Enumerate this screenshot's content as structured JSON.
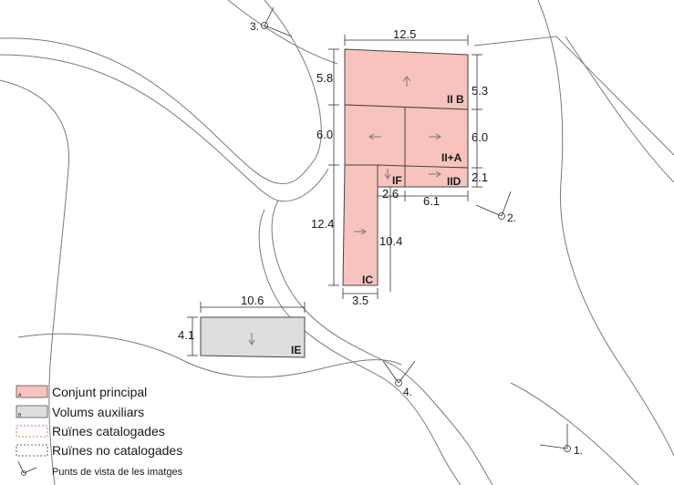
{
  "colors": {
    "principal_fill": "#f8c3bd",
    "auxiliar_fill": "#dedede",
    "ruines_cat_stroke": "#e04a3a",
    "ruines_no_cat_stroke": "#333333",
    "line": "#555555"
  },
  "dimensions": {
    "main_width": "12.5",
    "left_top": "5.8",
    "right_top": "5.3",
    "left_mid": "6.0",
    "right_mid": "6.0",
    "right_low": "2.1",
    "left_tall": "12.4",
    "inner_wing": "10.4",
    "inner_gap": "2.6",
    "right_bottom": "6.1",
    "wing_width": "3.5",
    "aux_width": "10.6",
    "aux_height": "4.1"
  },
  "labels": {
    "iib": "II B",
    "iia": "II+A",
    "iid": "IID",
    "if": "IF",
    "ic": "IC",
    "ie": "IE"
  },
  "viewpoints": {
    "vp1": "1.",
    "vp2": "2.",
    "vp3": "3.",
    "vp4": "4."
  },
  "legend": {
    "principal": "Conjunt principal",
    "principal_letter": "A",
    "auxiliars": "Volums auxiliars",
    "auxiliars_letter": "B",
    "ruines_cat": "Ruïnes catalogades",
    "ruines_no_cat": "Ruïnes no catalogades",
    "punts": "Punts de vista de les imatges"
  }
}
